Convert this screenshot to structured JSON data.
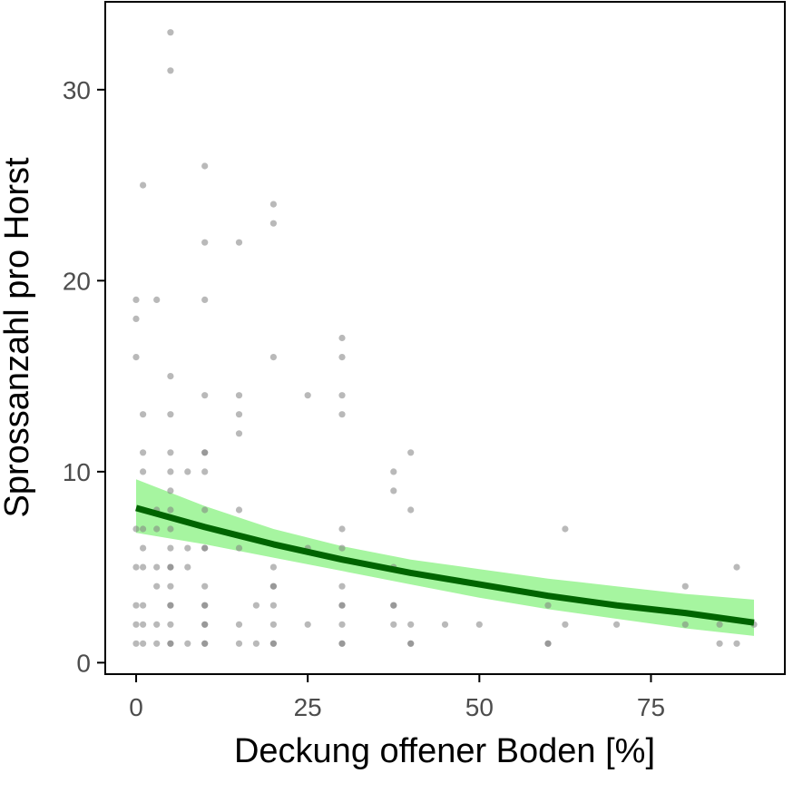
{
  "chart_data": {
    "type": "scatter",
    "title": "",
    "xlabel": "Deckung offener Boden [%]",
    "ylabel": "Sprossanzahl pro Horst",
    "xlim": [
      -4.5,
      94.5
    ],
    "ylim": [
      -0.6,
      34.6
    ],
    "x_ticks": [
      0,
      25,
      50,
      75
    ],
    "y_ticks": [
      0,
      10,
      20,
      30
    ],
    "grid": false,
    "legend": "none",
    "colors": {
      "points": "#7f7f7f",
      "fit_line": "#006400",
      "confidence_band": "#a6f5a0",
      "axis": "#000000",
      "tick_label": "#4d4d4d"
    },
    "points": [
      [
        0,
        1
      ],
      [
        0,
        2
      ],
      [
        0,
        3
      ],
      [
        0,
        5
      ],
      [
        0,
        7
      ],
      [
        0,
        16
      ],
      [
        0,
        18
      ],
      [
        0,
        19
      ],
      [
        1,
        1
      ],
      [
        1,
        2
      ],
      [
        1,
        3
      ],
      [
        1,
        5
      ],
      [
        1,
        6
      ],
      [
        1,
        7
      ],
      [
        1,
        8
      ],
      [
        1,
        10
      ],
      [
        1,
        11
      ],
      [
        1,
        13
      ],
      [
        1,
        25
      ],
      [
        3,
        1
      ],
      [
        3,
        2
      ],
      [
        3,
        4
      ],
      [
        3,
        5
      ],
      [
        3,
        7
      ],
      [
        3,
        8
      ],
      [
        3,
        19
      ],
      [
        5,
        1
      ],
      [
        5,
        1
      ],
      [
        5,
        2
      ],
      [
        5,
        3
      ],
      [
        5,
        3
      ],
      [
        5,
        4
      ],
      [
        5,
        5
      ],
      [
        5,
        5
      ],
      [
        5,
        6
      ],
      [
        5,
        7
      ],
      [
        5,
        8
      ],
      [
        5,
        9
      ],
      [
        5,
        10
      ],
      [
        5,
        11
      ],
      [
        5,
        13
      ],
      [
        5,
        15
      ],
      [
        5,
        31
      ],
      [
        5,
        33
      ],
      [
        7.5,
        1
      ],
      [
        7.5,
        5
      ],
      [
        7.5,
        6
      ],
      [
        7.5,
        10
      ],
      [
        10,
        1
      ],
      [
        10,
        1
      ],
      [
        10,
        2
      ],
      [
        10,
        2
      ],
      [
        10,
        3
      ],
      [
        10,
        3
      ],
      [
        10,
        4
      ],
      [
        10,
        6
      ],
      [
        10,
        6
      ],
      [
        10,
        8
      ],
      [
        10,
        10
      ],
      [
        10,
        11
      ],
      [
        10,
        11
      ],
      [
        10,
        14
      ],
      [
        10,
        19
      ],
      [
        10,
        22
      ],
      [
        10,
        26
      ],
      [
        15,
        1
      ],
      [
        15,
        2
      ],
      [
        15,
        6
      ],
      [
        15,
        8
      ],
      [
        15,
        12
      ],
      [
        15,
        13
      ],
      [
        15,
        14
      ],
      [
        15,
        22
      ],
      [
        17.5,
        1
      ],
      [
        17.5,
        3
      ],
      [
        20,
        1
      ],
      [
        20,
        1
      ],
      [
        20,
        2
      ],
      [
        20,
        3
      ],
      [
        20,
        4
      ],
      [
        20,
        4
      ],
      [
        20,
        5
      ],
      [
        20,
        16
      ],
      [
        20,
        23
      ],
      [
        20,
        24
      ],
      [
        25,
        2
      ],
      [
        25,
        6
      ],
      [
        25,
        14
      ],
      [
        30,
        1
      ],
      [
        30,
        1
      ],
      [
        30,
        2
      ],
      [
        30,
        3
      ],
      [
        30,
        3
      ],
      [
        30,
        4
      ],
      [
        30,
        6
      ],
      [
        30,
        7
      ],
      [
        30,
        13
      ],
      [
        30,
        14
      ],
      [
        30,
        16
      ],
      [
        30,
        17
      ],
      [
        37.5,
        2
      ],
      [
        37.5,
        3
      ],
      [
        37.5,
        3
      ],
      [
        37.5,
        5
      ],
      [
        37.5,
        9
      ],
      [
        37.5,
        10
      ],
      [
        40,
        1
      ],
      [
        40,
        1
      ],
      [
        40,
        2
      ],
      [
        40,
        8
      ],
      [
        40,
        11
      ],
      [
        45,
        2
      ],
      [
        50,
        2
      ],
      [
        60,
        1
      ],
      [
        60,
        1
      ],
      [
        60,
        3
      ],
      [
        62.5,
        2
      ],
      [
        62.5,
        7
      ],
      [
        70,
        2
      ],
      [
        80,
        2
      ],
      [
        80,
        4
      ],
      [
        85,
        1
      ],
      [
        85,
        2
      ],
      [
        87.5,
        1
      ],
      [
        87.5,
        5
      ],
      [
        90,
        2
      ]
    ],
    "fit": {
      "x": [
        0,
        10,
        20,
        30,
        40,
        50,
        60,
        70,
        80,
        90
      ],
      "y": [
        8.1,
        7.1,
        6.2,
        5.4,
        4.7,
        4.1,
        3.5,
        3.0,
        2.6,
        2.1
      ],
      "lower": [
        6.8,
        6.2,
        5.5,
        4.8,
        4.1,
        3.4,
        2.8,
        2.3,
        1.8,
        1.4
      ],
      "upper": [
        9.6,
        8.2,
        7.0,
        6.1,
        5.4,
        4.9,
        4.4,
        4.0,
        3.6,
        3.3
      ]
    }
  }
}
